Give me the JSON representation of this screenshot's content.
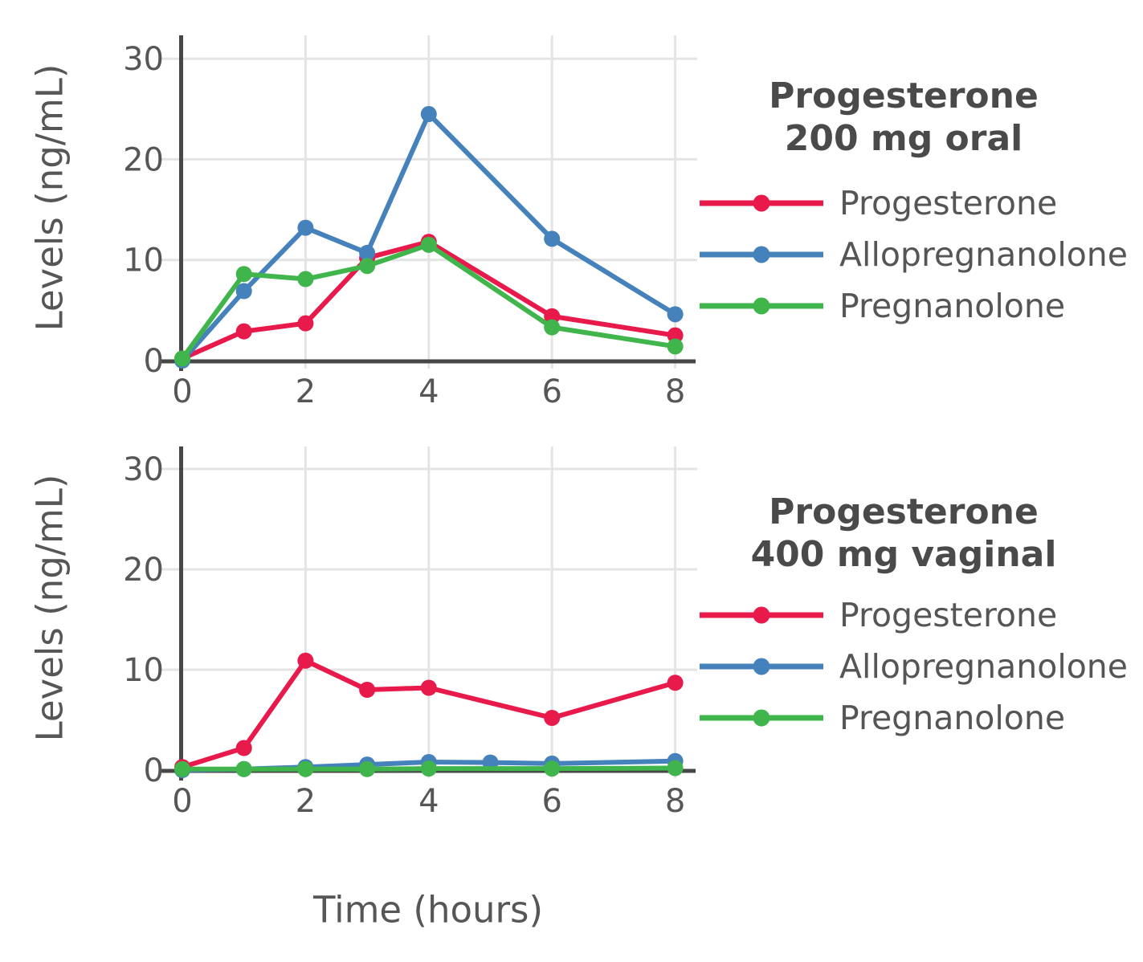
{
  "figure": {
    "x_axis_label": "Time (hours)",
    "y_axis_label": "Levels (ng/mL)"
  },
  "colors": {
    "progesterone": "#e71a4b",
    "allopregnanolone": "#4581bb",
    "pregnanolone": "#3fb54c",
    "axis_line": "#474747",
    "grid_line": "#e4e4e4",
    "tick_text": "#565656",
    "title_text": "#4a4a4a"
  },
  "chart_data": [
    {
      "type": "line",
      "title_line1": "Progesterone",
      "title_line2": "200 mg oral",
      "ylabel": "Levels (ng/mL)",
      "xlabel": "Time (hours)",
      "xlim": [
        0,
        8.35
      ],
      "ylim": [
        0,
        32
      ],
      "x_ticks": [
        0,
        2,
        4,
        6,
        8
      ],
      "y_ticks": [
        0,
        10,
        20,
        30
      ],
      "grid": true,
      "legend_position": "right",
      "series": [
        {
          "name": "Progesterone",
          "color": "#e71a4b",
          "x": [
            0,
            1,
            2,
            3,
            4,
            6,
            8
          ],
          "values": [
            0.2,
            2.9,
            3.7,
            10.2,
            11.8,
            4.4,
            2.5
          ]
        },
        {
          "name": "Allopregnanolone",
          "color": "#4581bb",
          "x": [
            0,
            1,
            2,
            3,
            4,
            6,
            8
          ],
          "values": [
            0.0,
            6.9,
            13.2,
            10.7,
            24.5,
            12.1,
            4.6
          ]
        },
        {
          "name": "Pregnanolone",
          "color": "#3fb54c",
          "x": [
            0,
            1,
            2,
            3,
            4,
            6,
            8
          ],
          "values": [
            0.2,
            8.6,
            8.1,
            9.4,
            11.5,
            3.3,
            1.4
          ]
        }
      ]
    },
    {
      "type": "line",
      "title_line1": "Progesterone",
      "title_line2": "400 mg vaginal",
      "ylabel": "Levels (ng/mL)",
      "xlabel": "Time (hours)",
      "xlim": [
        0,
        8.35
      ],
      "ylim": [
        0,
        32
      ],
      "x_ticks": [
        0,
        2,
        4,
        6,
        8
      ],
      "y_ticks": [
        0,
        10,
        20,
        30
      ],
      "grid": true,
      "legend_position": "right",
      "series": [
        {
          "name": "Progesterone",
          "color": "#e71a4b",
          "x": [
            0,
            1,
            2,
            3,
            4,
            6,
            8
          ],
          "values": [
            0.3,
            2.2,
            10.9,
            8.0,
            8.2,
            5.2,
            8.7
          ]
        },
        {
          "name": "Allopregnanolone",
          "color": "#4581bb",
          "x": [
            0,
            1,
            2,
            3,
            4,
            5,
            6,
            8
          ],
          "values": [
            0.0,
            0.1,
            0.3,
            0.55,
            0.8,
            0.75,
            0.65,
            0.9
          ]
        },
        {
          "name": "Pregnanolone",
          "color": "#3fb54c",
          "x": [
            0,
            1,
            2,
            3,
            4,
            6,
            8
          ],
          "values": [
            0.1,
            0.1,
            0.1,
            0.1,
            0.15,
            0.15,
            0.2
          ]
        }
      ]
    }
  ]
}
